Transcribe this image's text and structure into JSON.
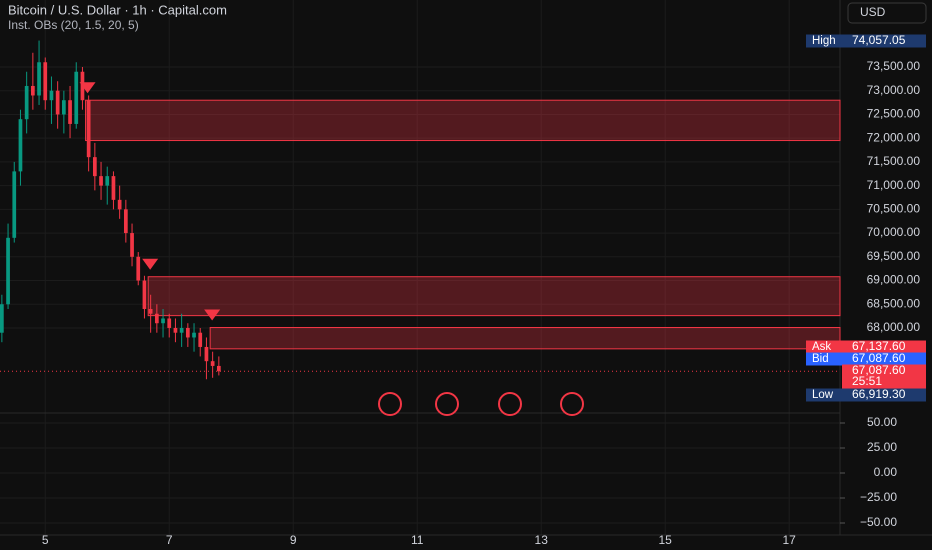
{
  "header": {
    "title": "Bitcoin / U.S. Dollar · 1h · Capital.com",
    "indicator": "Inst. OBs (20, 1.5, 20, 5)",
    "currency": "USD"
  },
  "chart_data": {
    "type": "candlestick",
    "x": [
      4.3,
      4.4,
      4.5,
      4.6,
      4.7,
      4.8,
      4.9,
      5.0,
      5.1,
      5.2,
      5.3,
      5.4,
      5.5,
      5.6,
      5.7,
      5.8,
      5.9,
      6.0,
      6.1,
      6.2,
      6.3,
      6.4,
      6.5,
      6.6,
      6.7,
      6.8,
      6.9,
      7.0,
      7.1,
      7.2,
      7.3,
      7.4,
      7.5,
      7.6,
      7.7,
      7.8
    ],
    "open": [
      67900,
      68500,
      69900,
      71300,
      72400,
      73100,
      72900,
      73600,
      72800,
      73000,
      72500,
      72800,
      72300,
      73400,
      72800,
      71600,
      71200,
      71000,
      71200,
      70700,
      70500,
      70000,
      69500,
      69000,
      68400,
      68300,
      68100,
      68200,
      68000,
      67900,
      68000,
      67800,
      67900,
      67600,
      67300,
      67200
    ],
    "high": [
      68700,
      70200,
      71500,
      72600,
      73400,
      73800,
      74057.05,
      73700,
      73300,
      73200,
      73000,
      73100,
      73600,
      73500,
      72900,
      71900,
      71500,
      71400,
      71300,
      71000,
      70700,
      70200,
      69600,
      69100,
      68700,
      68500,
      68400,
      68300,
      68200,
      68300,
      68100,
      68100,
      68000,
      67800,
      67500,
      67400
    ],
    "low": [
      67700,
      68400,
      69800,
      71000,
      72100,
      72600,
      72700,
      72600,
      72300,
      72200,
      72100,
      72000,
      72200,
      72600,
      71300,
      70900,
      70700,
      70600,
      70500,
      70300,
      69800,
      69300,
      68900,
      68200,
      67900,
      67900,
      67800,
      67800,
      67700,
      67600,
      67600,
      67500,
      67400,
      66919.3,
      66950,
      67000
    ],
    "close": [
      68500,
      69900,
      71300,
      72400,
      73100,
      72900,
      73600,
      72800,
      73000,
      72500,
      72800,
      72300,
      73400,
      72800,
      71600,
      71200,
      71000,
      71200,
      70700,
      70500,
      70000,
      69500,
      69000,
      68400,
      68300,
      68100,
      68200,
      68000,
      67900,
      68000,
      67800,
      67900,
      67600,
      67300,
      67200,
      67087.6
    ],
    "up_color": "#089981",
    "down_color": "#f23645",
    "order_blocks": [
      {
        "x_start": 5.65,
        "top": 72800,
        "bottom": 71950
      },
      {
        "x_start": 6.66,
        "top": 69080,
        "bottom": 68260
      },
      {
        "x_start": 7.66,
        "top": 68010,
        "bottom": 67560
      }
    ],
    "block_color": "#f23645",
    "xlim": [
      4.27,
      17.82
    ],
    "xticks": [
      5,
      7,
      9,
      11,
      13,
      15,
      17
    ],
    "ylim": [
      66229,
      74912
    ],
    "yticks": [
      {
        "value": 68000,
        "label": "68,000.00"
      },
      {
        "value": 68500,
        "label": "68,500.00"
      },
      {
        "value": 69000,
        "label": "69,000.00"
      },
      {
        "value": 69500,
        "label": "69,500.00"
      },
      {
        "value": 70000,
        "label": "70,000.00"
      },
      {
        "value": 70500,
        "label": "70,500.00"
      },
      {
        "value": 71000,
        "label": "71,000.00"
      },
      {
        "value": 71500,
        "label": "71,500.00"
      },
      {
        "value": 72000,
        "label": "72,000.00"
      },
      {
        "value": 72500,
        "label": "72,500.00"
      },
      {
        "value": 73000,
        "label": "73,000.00"
      },
      {
        "value": 73500,
        "label": "73,500.00"
      }
    ],
    "price_tags": [
      {
        "label": "High",
        "value": 74057.05,
        "value_label": "74,057.05",
        "color": "#1e3a6e"
      },
      {
        "label": "Ask",
        "value": 67137.6,
        "value_label": "67,137.60",
        "color": "#f23645"
      },
      {
        "label": "Bid",
        "value": 67087.6,
        "value_label": "67,087.60",
        "color": "#2962ff"
      },
      {
        "value": 67087.6,
        "value_label": "67,087.60",
        "countdown": "25:51",
        "color": "#f23645"
      },
      {
        "label": "Low",
        "value": 66919.3,
        "value_label": "66,919.30",
        "color": "#1e3a6e"
      }
    ],
    "sub_ylim": [
      -62,
      60
    ],
    "sub_yticks": [
      {
        "value": 50,
        "label": "50.00"
      },
      {
        "value": 25,
        "label": "25.00"
      },
      {
        "value": 0,
        "label": "0.00"
      },
      {
        "value": -25,
        "label": "−25.00"
      },
      {
        "value": -50,
        "label": "−50.00"
      }
    ]
  }
}
